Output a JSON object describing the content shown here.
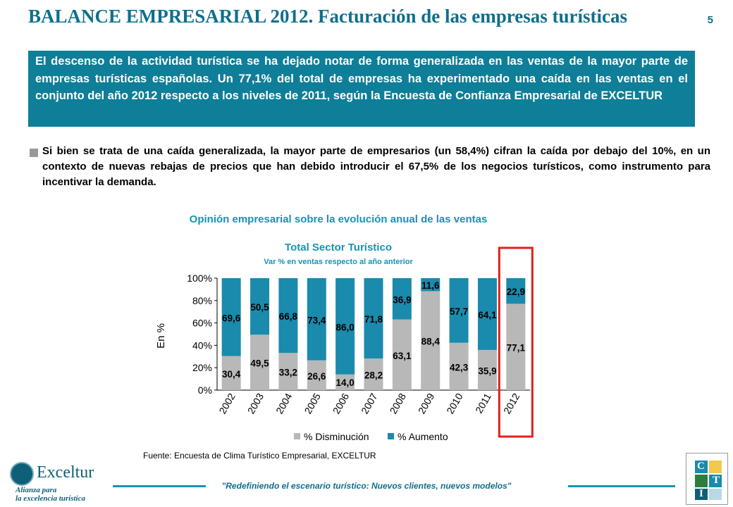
{
  "header": {
    "title": "BALANCE EMPRESARIAL 2012. Facturación de las empresas turísticas",
    "page_number": "5"
  },
  "summary": "El descenso de la actividad turística se ha dejado notar de forma generalizada en las ventas de la mayor parte de empresas turísticas españolas. Un 77,1% del total de empresas ha experimentado una caída en las ventas en el conjunto del año 2012 respecto a los niveles de 2011, según la Encuesta de Confianza Empresarial de EXCELTUR",
  "bullet": "Si bien se trata de una caída generalizada, la mayor parte de empresarios (un 58,4%) cifran la caída por debajo del 10%, en un contexto de nuevas rebajas de precios que han debido introducir el 67,5% de los negocios turísticos, como instrumento para incentivar la demanda.",
  "chart_data": {
    "type": "bar",
    "stacked": true,
    "title": "Opinión empresarial sobre la evolución anual de las ventas",
    "subtitle": "Total Sector Turístico",
    "subsubtitle": "Var % en ventas respecto al año anterior",
    "ylabel": "En %",
    "ylim": [
      0,
      100
    ],
    "yticks": [
      "0%",
      "20%",
      "40%",
      "60%",
      "80%",
      "100%"
    ],
    "categories": [
      "2002",
      "2003",
      "2004",
      "2005",
      "2006",
      "2007",
      "2008",
      "2009",
      "2010",
      "2011",
      "2012"
    ],
    "series": [
      {
        "name": "% Disminución",
        "color": "#b8b8b8",
        "values": [
          30.4,
          49.5,
          33.2,
          26.6,
          14.0,
          28.2,
          63.1,
          88.4,
          42.3,
          35.9,
          77.1
        ],
        "labels": [
          "30,4",
          "49,5",
          "33,2",
          "26,6",
          "14,0",
          "28,2",
          "63,1",
          "88,4",
          "42,3",
          "35,9",
          "77,1"
        ]
      },
      {
        "name": "% Aumento",
        "color": "#1a8aad",
        "values": [
          69.6,
          50.5,
          66.8,
          73.4,
          86.0,
          71.8,
          36.9,
          11.6,
          57.7,
          64.1,
          22.9
        ],
        "labels": [
          "69,6",
          "50,5",
          "66,8",
          "73,4",
          "86,0",
          "71,8",
          "36,9",
          "11,6",
          "57,7",
          "64,1",
          "22,9"
        ]
      }
    ],
    "highlight_category": "2012",
    "highlight_color": "#e0201b",
    "legend": "bottom"
  },
  "source": "Fuente: Encuesta de Clima Turístico Empresarial, EXCELTUR",
  "footer": {
    "slogan": "\"Redefiniendo el escenario turístico: Nuevos clientes, nuevos modelos\"",
    "logo_name": "Exceltur",
    "logo_tagline_1": "Alianza para",
    "logo_tagline_2": "la excelencia turística"
  },
  "colors": {
    "brand": "#0e6f8c",
    "box": "#0f7e98"
  }
}
